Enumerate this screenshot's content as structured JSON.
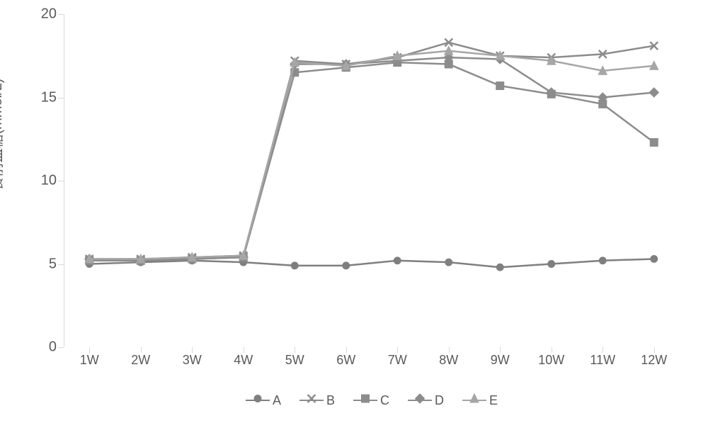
{
  "chart": {
    "type": "line",
    "y_axis_title": "餐前血糖(mmol/L)",
    "ylim": [
      0,
      20
    ],
    "yticks": [
      0,
      5,
      10,
      15,
      20
    ],
    "xticks": [
      "1W",
      "2W",
      "3W",
      "4W",
      "5W",
      "6W",
      "7W",
      "8W",
      "9W",
      "10W",
      "11W",
      "12W"
    ],
    "background_color": "#ffffff",
    "axis_color": "#d9d9d9",
    "tick_label_color": "#595959",
    "tick_label_fontsize": 20,
    "x_tick_label_fontsize": 18,
    "line_width": 2.5,
    "marker_size": 7,
    "series": [
      {
        "name": "A",
        "marker": "circle",
        "color": "#7f7f7f",
        "values": [
          5.0,
          5.1,
          5.2,
          5.1,
          4.9,
          4.9,
          5.2,
          5.1,
          4.8,
          5.0,
          5.2,
          5.3
        ]
      },
      {
        "name": "B",
        "marker": "x",
        "color": "#8c8c8c",
        "values": [
          5.3,
          5.3,
          5.4,
          5.5,
          17.2,
          17.0,
          17.4,
          18.3,
          17.5,
          17.4,
          17.6,
          18.1
        ]
      },
      {
        "name": "C",
        "marker": "square",
        "color": "#8c8c8c",
        "values": [
          5.2,
          5.2,
          5.3,
          5.4,
          16.5,
          16.8,
          17.1,
          17.0,
          15.7,
          15.2,
          14.6,
          12.3
        ]
      },
      {
        "name": "D",
        "marker": "diamond",
        "color": "#8c8c8c",
        "values": [
          5.3,
          5.2,
          5.3,
          5.4,
          17.0,
          17.0,
          17.2,
          17.4,
          17.3,
          15.3,
          15.0,
          15.3
        ]
      },
      {
        "name": "E",
        "marker": "triangle",
        "color": "#a6a6a6",
        "values": [
          5.3,
          5.3,
          5.4,
          5.5,
          17.1,
          16.9,
          17.5,
          17.8,
          17.5,
          17.2,
          16.6,
          16.9
        ]
      }
    ],
    "legend_labels": {
      "A": "A",
      "B": "B",
      "C": "C",
      "D": "D",
      "E": "E"
    }
  }
}
